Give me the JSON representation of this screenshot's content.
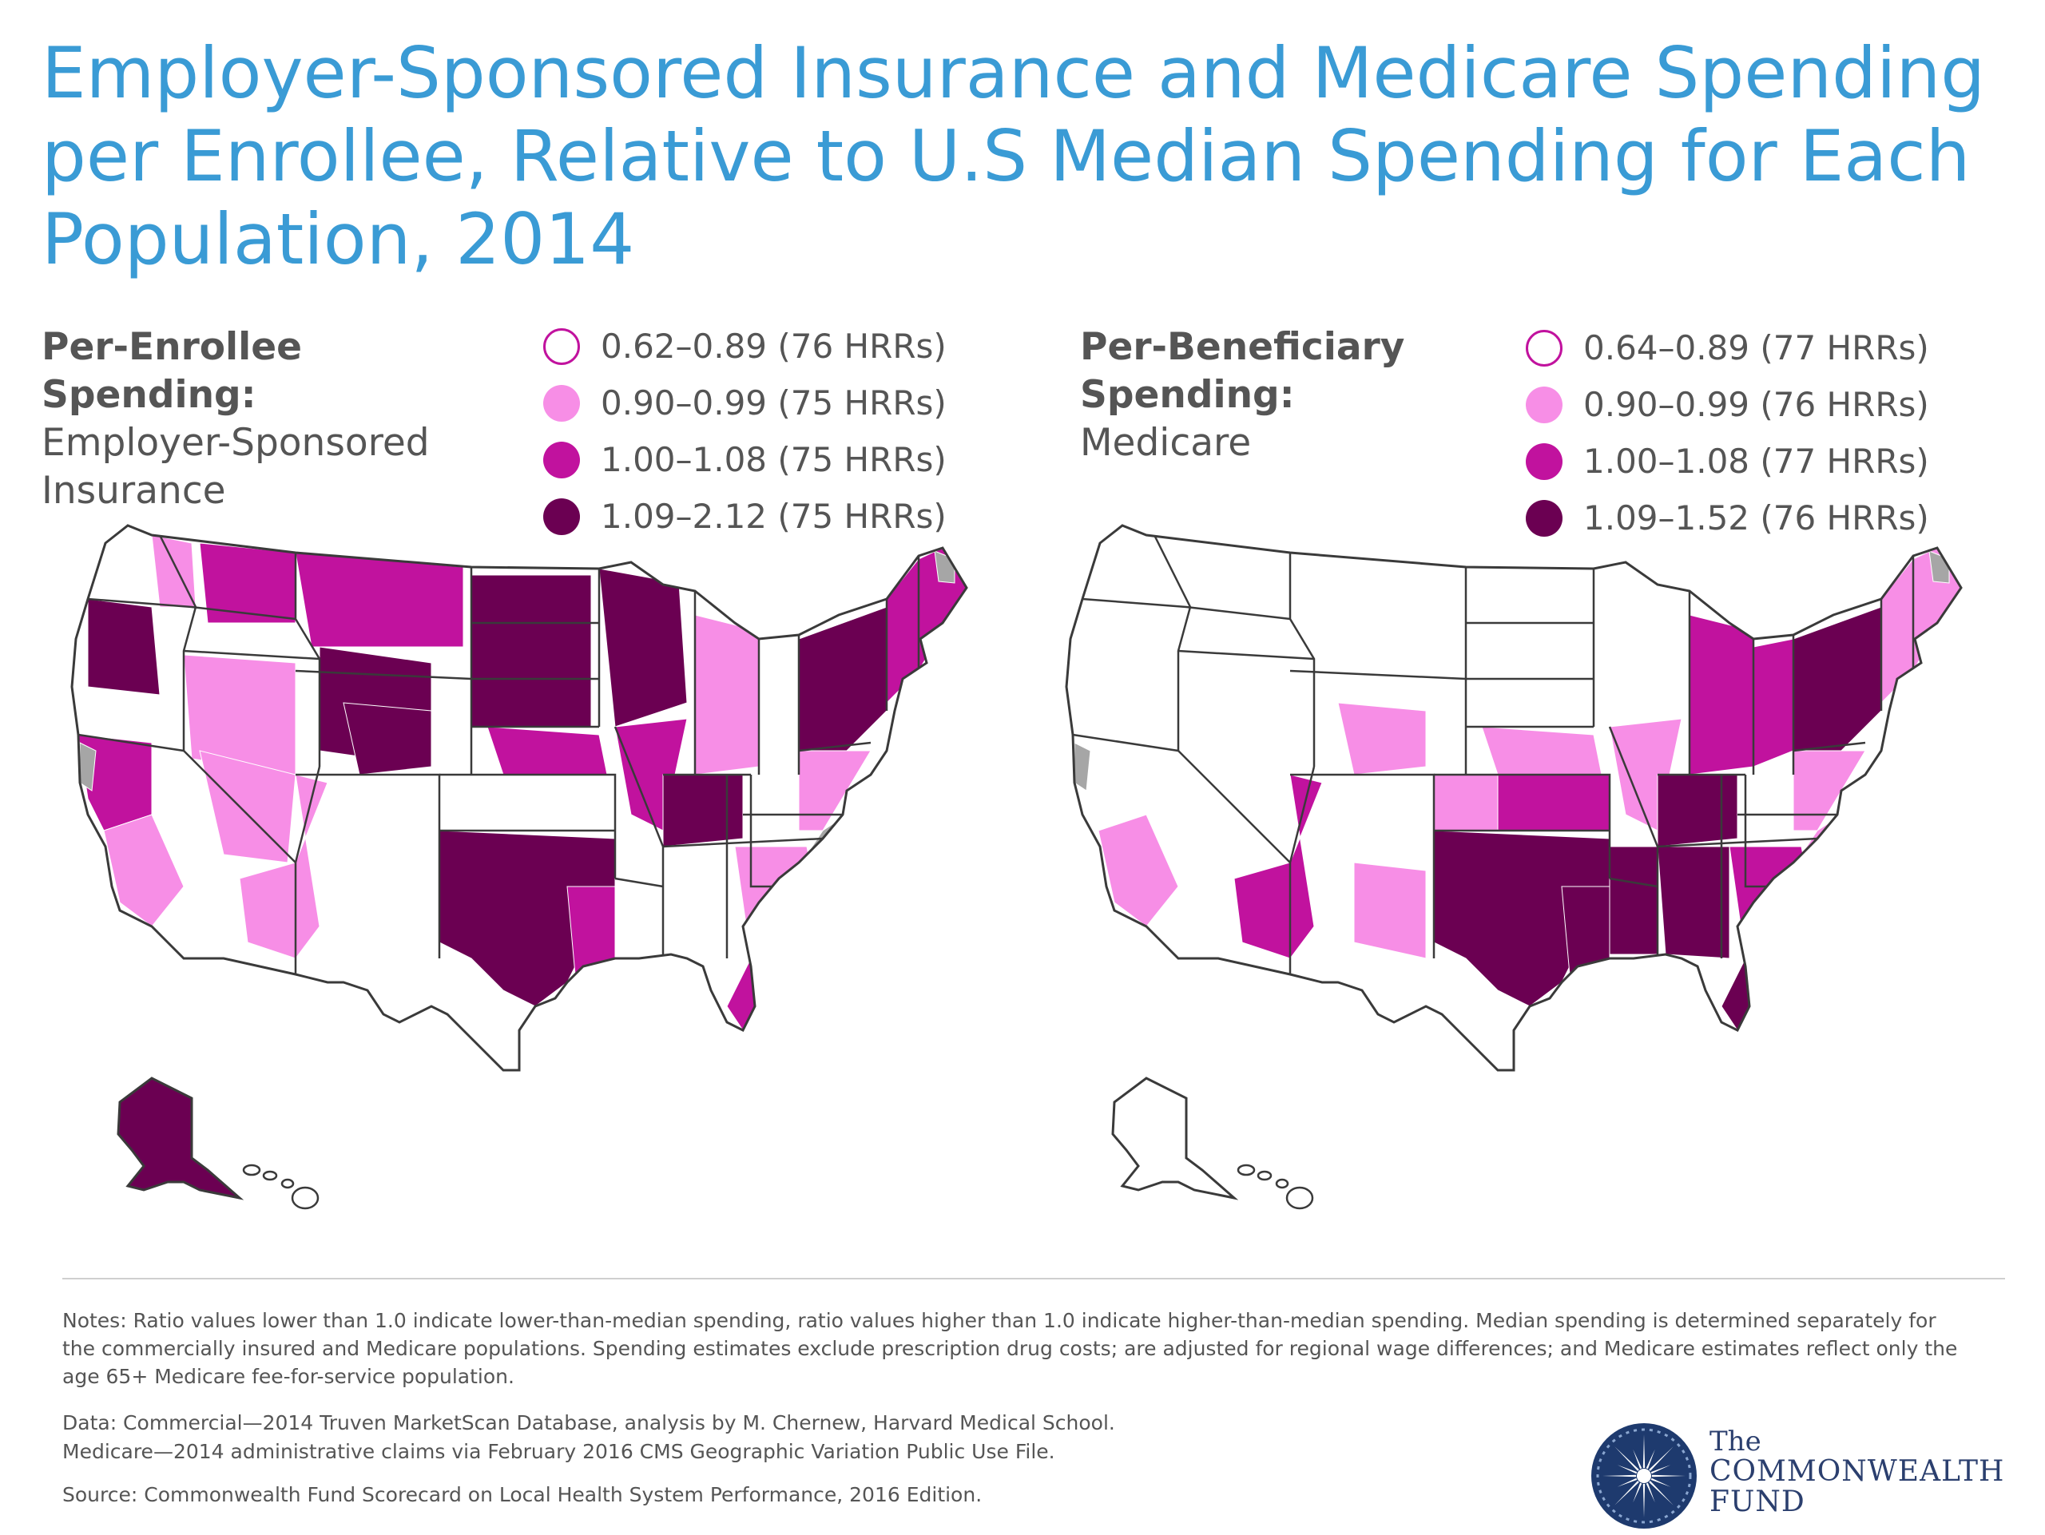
{
  "title": "Employer-Sponsored Insurance and Medicare Spending per Enrollee, Relative to U.S Median Spending for Each Population, 2014",
  "colors": {
    "title": "#3a9bd5",
    "lowest": "#ffffff",
    "low": "#f78ee6",
    "high": "#c1129e",
    "highest": "#6b0052",
    "no_data": "#a6a6a6",
    "outline": "#3a3a3a"
  },
  "left_panel": {
    "heading_bold": "Per-Enrollee Spending:",
    "heading_line2": "Employer-Sponsored",
    "heading_line3": "Insurance",
    "legend": [
      {
        "label": "0.62–0.89 (76 HRRs)",
        "range": [
          0.62,
          0.89
        ],
        "hrrs": 76,
        "color_key": "lowest"
      },
      {
        "label": "0.90–0.99 (75 HRRs)",
        "range": [
          0.9,
          0.99
        ],
        "hrrs": 75,
        "color_key": "low"
      },
      {
        "label": "1.00–1.08 (75 HRRs)",
        "range": [
          1.0,
          1.08
        ],
        "hrrs": 75,
        "color_key": "high"
      },
      {
        "label": "1.09–2.12 (75 HRRs)",
        "range": [
          1.09,
          2.12
        ],
        "hrrs": 75,
        "color_key": "highest"
      }
    ],
    "alaska_class": "highest",
    "hawaii_class": "lowest"
  },
  "right_panel": {
    "heading_bold": "Per-Beneficiary Spending:",
    "heading_line3": "Medicare",
    "legend": [
      {
        "label": "0.64–0.89 (77 HRRs)",
        "range": [
          0.64,
          0.89
        ],
        "hrrs": 77,
        "color_key": "lowest"
      },
      {
        "label": "0.90–0.99 (76 HRRs)",
        "range": [
          0.9,
          0.99
        ],
        "hrrs": 76,
        "color_key": "low"
      },
      {
        "label": "1.00–1.08 (77 HRRs)",
        "range": [
          1.0,
          1.08
        ],
        "hrrs": 77,
        "color_key": "high"
      },
      {
        "label": "1.09–1.52 (76 HRRs)",
        "range": [
          1.09,
          1.52
        ],
        "hrrs": 76,
        "color_key": "highest"
      }
    ],
    "alaska_class": "lowest",
    "hawaii_class": "lowest"
  },
  "notes": "Notes: Ratio values lower than 1.0 indicate lower-than-median spending, ratio values higher than 1.0 indicate higher-than-median spending. Median spending is determined separately for the commercially insured and Medicare populations. Spending estimates exclude prescription drug costs; are adjusted for regional wage differences; and Medicare estimates reflect only the age 65+ Medicare fee-for-service population.",
  "data_line1": "Data: Commercial—2014 Truven MarketScan Database, analysis by M. Chernew, Harvard Medical School.",
  "data_line2": "Medicare—2014 administrative claims via February 2016 CMS Geographic Variation Public Use File.",
  "source": "Source: Commonwealth Fund Scorecard on Local Health System Performance, 2016 Edition.",
  "logo": {
    "the": "The",
    "line1": "COMMONWEALTH",
    "line2": "FUND"
  }
}
